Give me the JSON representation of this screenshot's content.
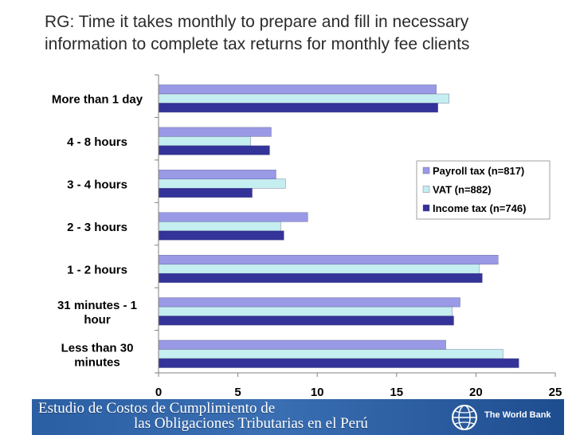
{
  "title_lines": [
    "RG: Time it takes monthly to prepare and fill in necessary",
    "information to complete tax returns for monthly fee clients"
  ],
  "chart_data": {
    "type": "bar",
    "orientation": "horizontal",
    "categories": [
      [
        "More than 1 day"
      ],
      [
        "4 - 8 hours"
      ],
      [
        "3 - 4 hours"
      ],
      [
        "2 - 3 hours"
      ],
      [
        "1 - 2 hours"
      ],
      [
        "31 minutes - 1",
        "hour"
      ],
      [
        "Less than 30",
        "minutes"
      ]
    ],
    "series": [
      {
        "name": "Payroll tax (n=817)",
        "color": "#9999e6",
        "values": [
          17.5,
          7.1,
          7.4,
          9.4,
          21.4,
          19.0,
          18.1
        ]
      },
      {
        "name": "VAT (n=882)",
        "color": "#c5eef0",
        "values": [
          18.3,
          5.8,
          8.0,
          7.7,
          20.2,
          18.5,
          21.7
        ]
      },
      {
        "name": "Income tax (n=746)",
        "color": "#333399",
        "values": [
          17.6,
          7.0,
          5.9,
          7.9,
          20.4,
          18.6,
          22.7
        ]
      }
    ],
    "xlim": [
      0,
      25
    ],
    "xticks": [
      0,
      5,
      10,
      15,
      20,
      25
    ],
    "grid": false,
    "legend_position": "right"
  },
  "banner": {
    "line1": "Estudio de Costos de Cumplimiento de",
    "line2": "las Obligaciones Tributarias en el Perú",
    "org": "The World Bank"
  }
}
